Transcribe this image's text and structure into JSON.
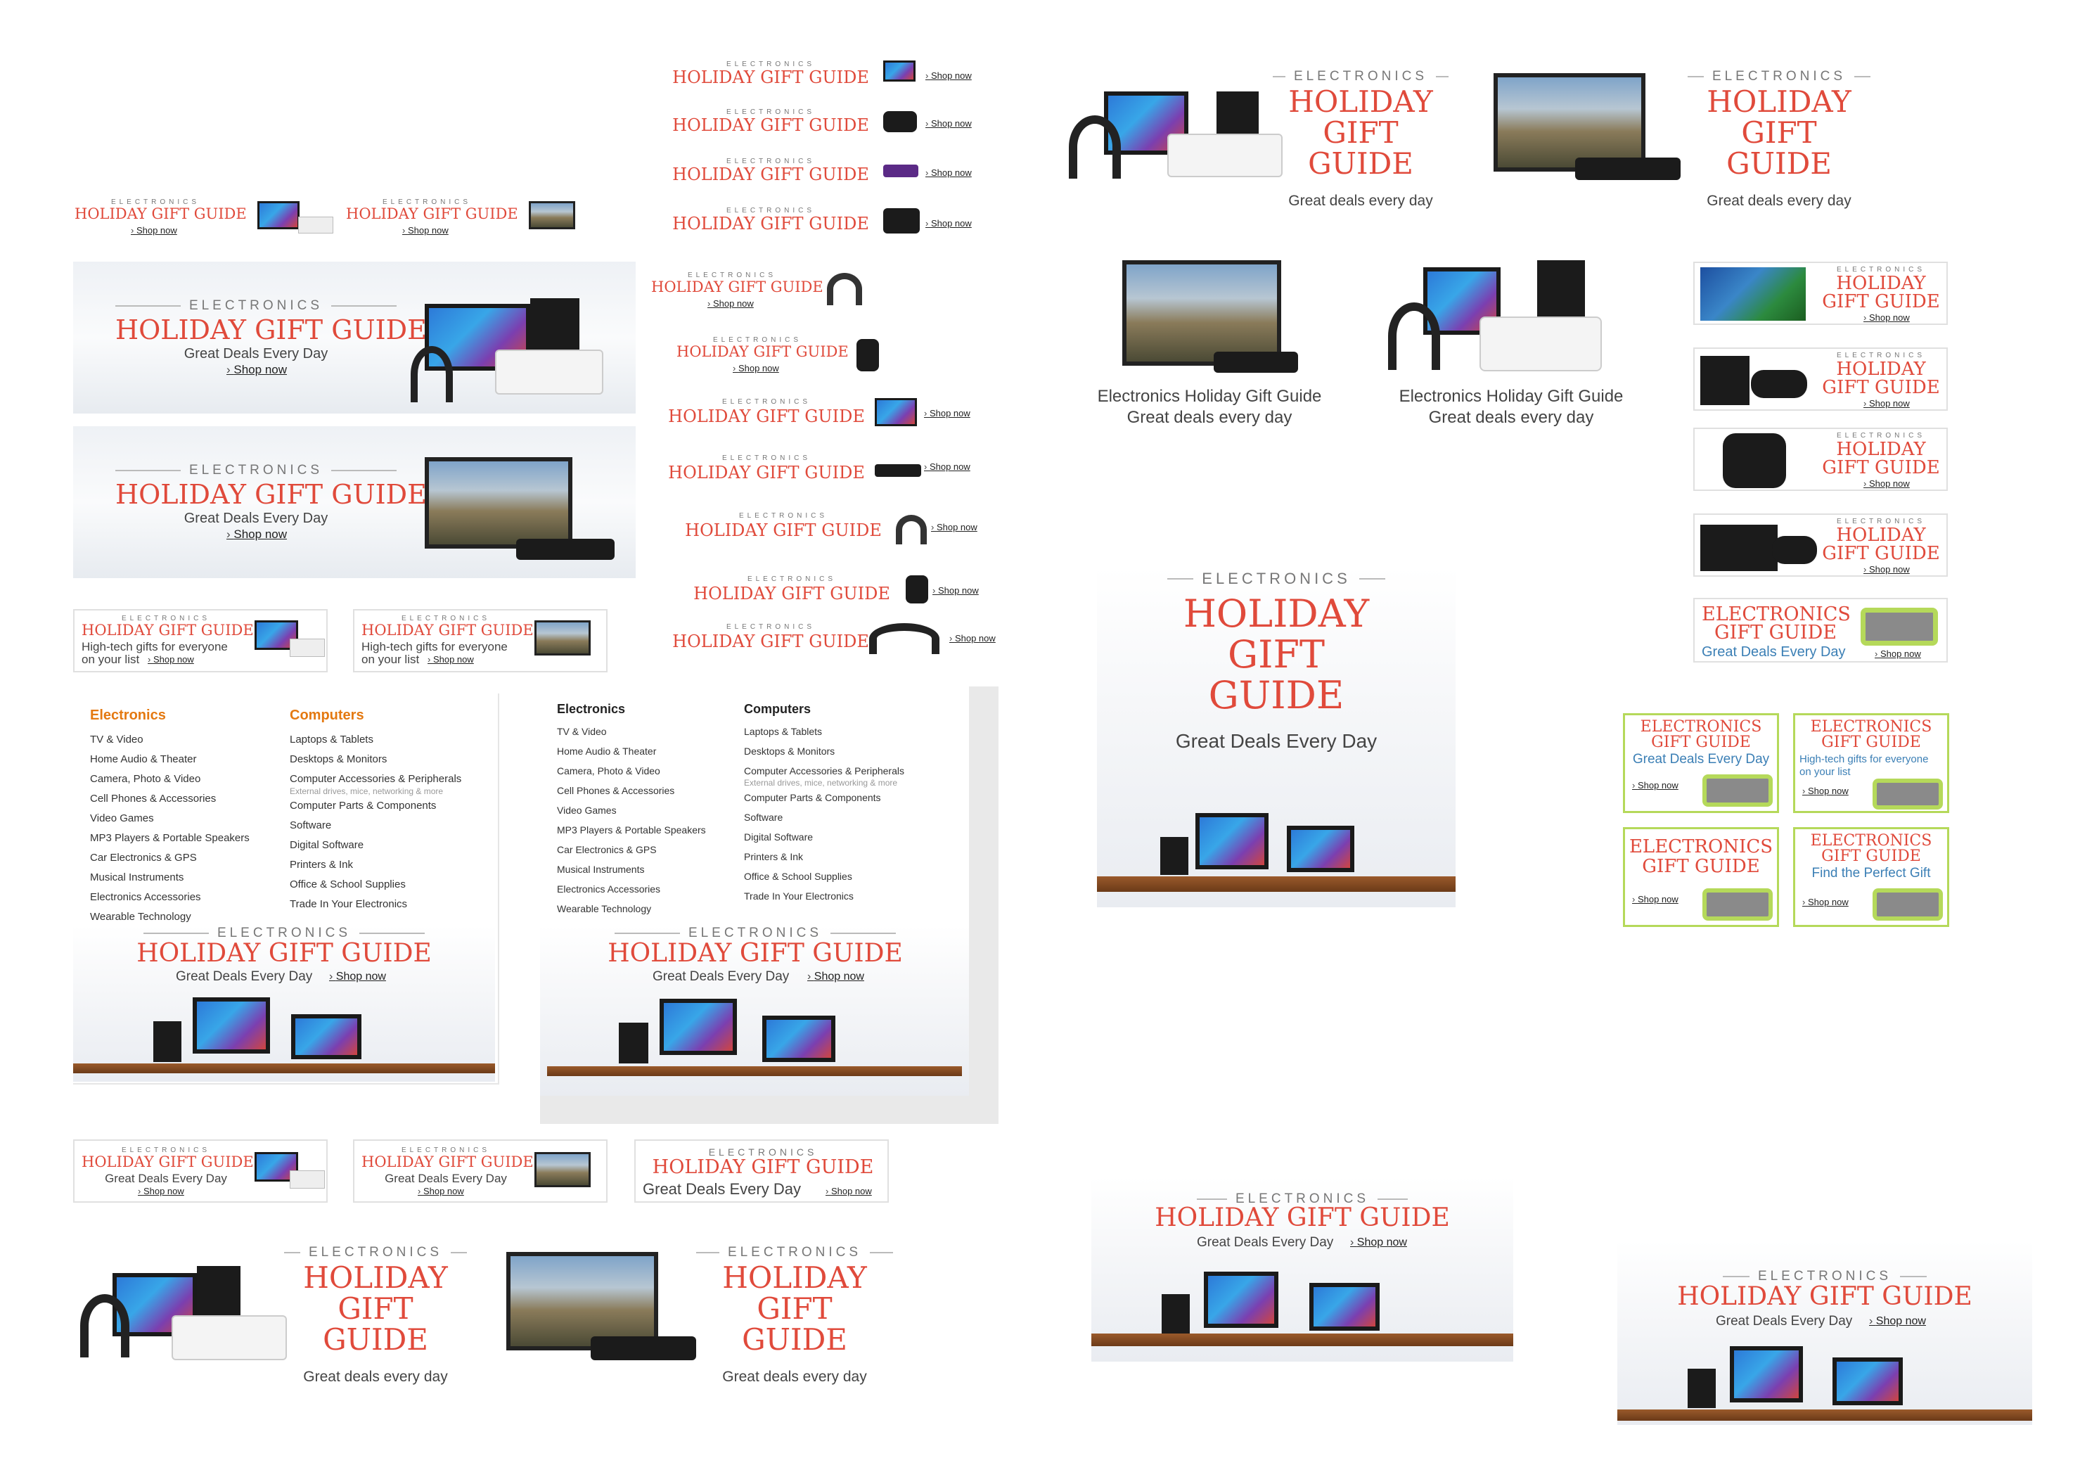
{
  "common": {
    "eyebrow": "ELECTRONICS",
    "headline": "HOLIDAY GIFT GUIDE",
    "w_holiday": "HOLIDAY",
    "w_gift": "GIFT",
    "w_guide": "GUIDE",
    "shop": "Shop now",
    "deals_cap": "Great Deals Every Day",
    "deals_low": "Great deals every day",
    "hightech": "High-tech gifts for everyone",
    "on_your_list": "on your list",
    "gg_title": "Electronics Holiday Gift Guide",
    "elec_gift": "ELECTRONICS",
    "gift_guide": "GIFT GUIDE",
    "perfect": "Find the Perfect Gift"
  },
  "nav": {
    "electronics": {
      "title": "Electronics",
      "items": [
        "TV & Video",
        "Home Audio & Theater",
        "Camera, Photo & Video",
        "Cell Phones & Accessories",
        "Video Games",
        "MP3 Players & Portable Speakers",
        "Car Electronics & GPS",
        "Musical Instruments",
        "Electronics Accessories",
        "Wearable Technology"
      ]
    },
    "computers": {
      "title": "Computers",
      "items": [
        "Laptops & Tablets",
        "Desktops & Monitors",
        "Computer Accessories & Peripherals",
        "Computer Parts & Components",
        "Software",
        "Digital Software",
        "Printers & Ink",
        "Office & School Supplies",
        "Trade In Your Electronics"
      ],
      "note": "External drives, mice, networking & more"
    }
  },
  "colors": {
    "headline": "#e04a3b",
    "accent_orange": "#e47911",
    "bose_green": "#b5d95a"
  }
}
